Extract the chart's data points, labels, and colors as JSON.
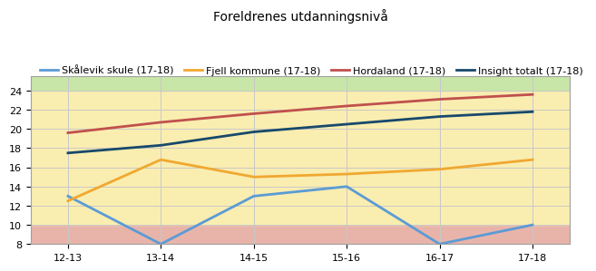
{
  "title": "Foreldrenes utdanningsnivå",
  "x_labels": [
    "12-13",
    "13-14",
    "14-15",
    "15-16",
    "16-17",
    "17-18"
  ],
  "x_values": [
    0,
    1,
    2,
    3,
    4,
    5
  ],
  "series": [
    {
      "label": "Skålevik skule (17-18)",
      "color": "#5b9bd5",
      "values": [
        13,
        8,
        13,
        14,
        8,
        10
      ]
    },
    {
      "label": "Fjell kommune (17-18)",
      "color": "#f0a830",
      "values": [
        12.5,
        16.8,
        15,
        15.3,
        15.8,
        16.8
      ]
    },
    {
      "label": "Hordaland (17-18)",
      "color": "#c0504d",
      "values": [
        19.6,
        20.7,
        21.6,
        22.4,
        23.1,
        23.6
      ]
    },
    {
      "label": "Insight totalt (17-18)",
      "color": "#17496b",
      "values": [
        17.5,
        18.3,
        19.7,
        20.5,
        21.3,
        21.8
      ]
    }
  ],
  "ylim": [
    8,
    25.5
  ],
  "yticks": [
    8,
    10,
    12,
    14,
    16,
    18,
    20,
    22,
    24
  ],
  "bg_red_range": [
    8,
    10
  ],
  "bg_yellow_range": [
    10,
    24
  ],
  "bg_green_range": [
    24,
    25.5
  ],
  "bg_red_color": "#e8b4aa",
  "bg_yellow_color": "#faedb0",
  "bg_green_color": "#c8e6a8",
  "grid_color": "#c8c8c8",
  "border_color": "#a0a0a0",
  "title_fontsize": 10,
  "legend_fontsize": 8,
  "tick_fontsize": 8,
  "linewidth": 2.0,
  "fig_bg_color": "#ffffff"
}
